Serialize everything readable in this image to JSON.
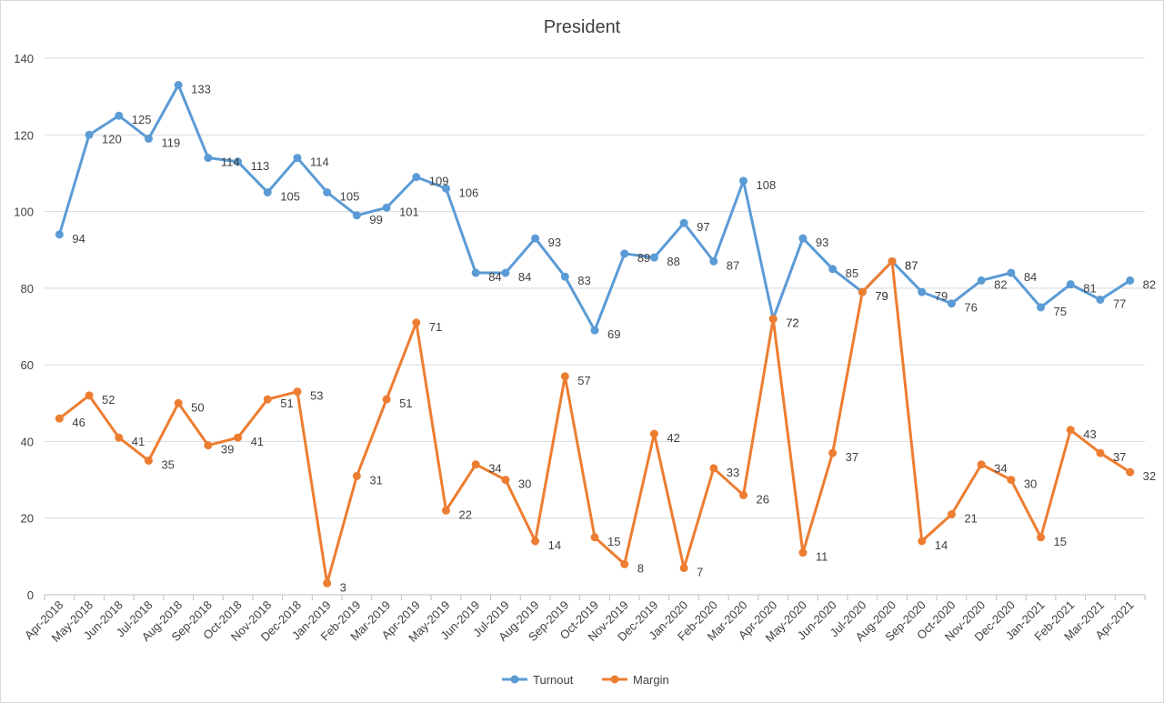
{
  "chart_data": {
    "type": "line",
    "title": "President",
    "xlabel": "",
    "ylabel": "",
    "ylim": [
      0,
      140
    ],
    "yticks": [
      0,
      20,
      40,
      60,
      80,
      100,
      120,
      140
    ],
    "grid": true,
    "legend_position": "bottom",
    "categories": [
      "Apr-2018",
      "May-2018",
      "Jun-2018",
      "Jul-2018",
      "Aug-2018",
      "Sep-2018",
      "Oct-2018",
      "Nov-2018",
      "Dec-2018",
      "Jan-2019",
      "Feb-2019",
      "Mar-2019",
      "Apr-2019",
      "May-2019",
      "Jun-2019",
      "Jul-2019",
      "Aug-2019",
      "Sep-2019",
      "Oct-2019",
      "Nov-2019",
      "Dec-2019",
      "Jan-2020",
      "Feb-2020",
      "Mar-2020",
      "Apr-2020",
      "May-2020",
      "Jun-2020",
      "Jul-2020",
      "Aug-2020",
      "Sep-2020",
      "Oct-2020",
      "Nov-2020",
      "Dec-2020",
      "Jan-2021",
      "Feb-2021",
      "Mar-2021",
      "Apr-2021"
    ],
    "series": [
      {
        "name": "Turnout",
        "color": "#5b9bd5",
        "values": [
          94,
          120,
          125,
          119,
          133,
          114,
          113,
          105,
          114,
          105,
          99,
          101,
          109,
          106,
          84,
          84,
          93,
          83,
          69,
          89,
          88,
          97,
          87,
          108,
          72,
          93,
          85,
          79,
          87,
          79,
          76,
          82,
          84,
          75,
          81,
          77,
          82
        ]
      },
      {
        "name": "Margin",
        "color": "#ed7d31",
        "values": [
          46,
          52,
          41,
          35,
          50,
          39,
          41,
          51,
          53,
          3,
          31,
          51,
          71,
          22,
          34,
          30,
          14,
          57,
          15,
          8,
          42,
          7,
          33,
          26,
          72,
          11,
          37,
          79,
          87,
          14,
          21,
          34,
          30,
          15,
          43,
          37,
          32
        ]
      }
    ]
  }
}
